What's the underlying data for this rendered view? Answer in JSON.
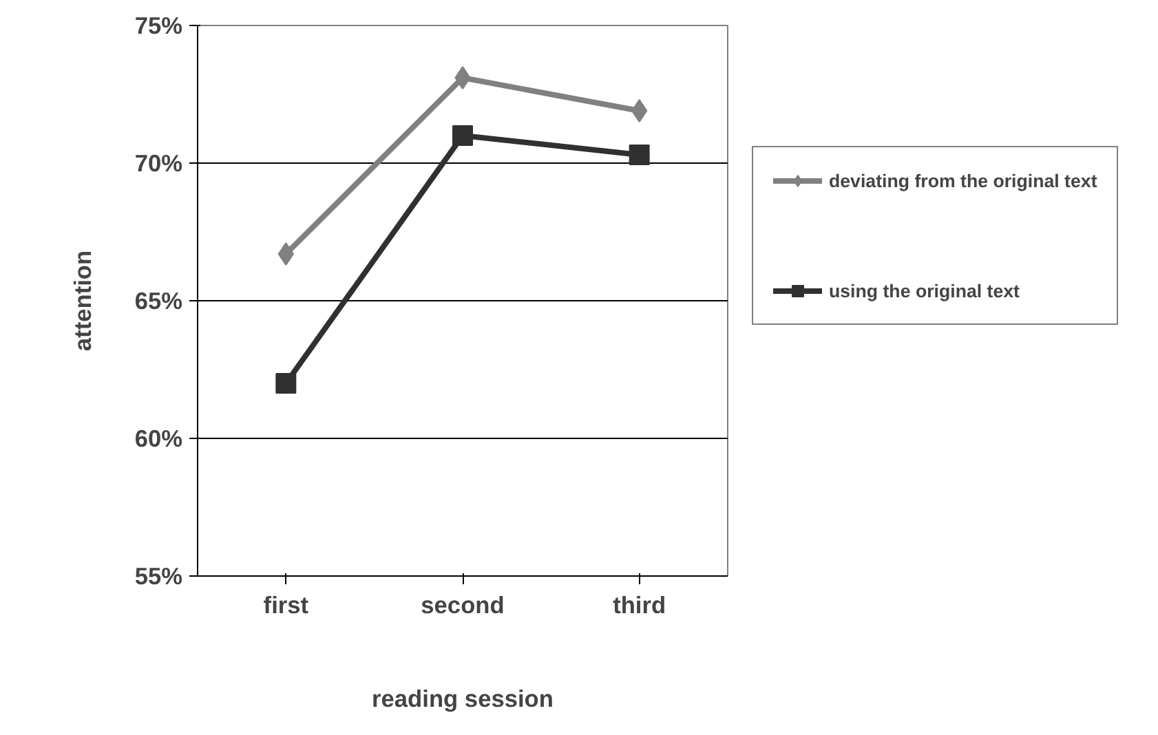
{
  "chart_data": {
    "type": "line",
    "xlabel": "reading session",
    "ylabel": "attention",
    "categories": [
      "first",
      "second",
      "third"
    ],
    "series": [
      {
        "name": "deviating from the original text",
        "color": "#808080",
        "marker": "diamond",
        "values": [
          66.7,
          73.1,
          71.9
        ]
      },
      {
        "name": "using the original text",
        "color": "#303030",
        "marker": "square",
        "values": [
          62.0,
          71.0,
          70.3
        ]
      }
    ],
    "ylim": [
      55,
      75
    ],
    "yticks": [
      {
        "value": 55,
        "label": "55%"
      },
      {
        "value": 60,
        "label": "60%"
      },
      {
        "value": 65,
        "label": "65%"
      },
      {
        "value": 70,
        "label": "70%"
      },
      {
        "value": 75,
        "label": "75%"
      }
    ],
    "grid": "y",
    "legend": "right",
    "line_style": "solid"
  }
}
